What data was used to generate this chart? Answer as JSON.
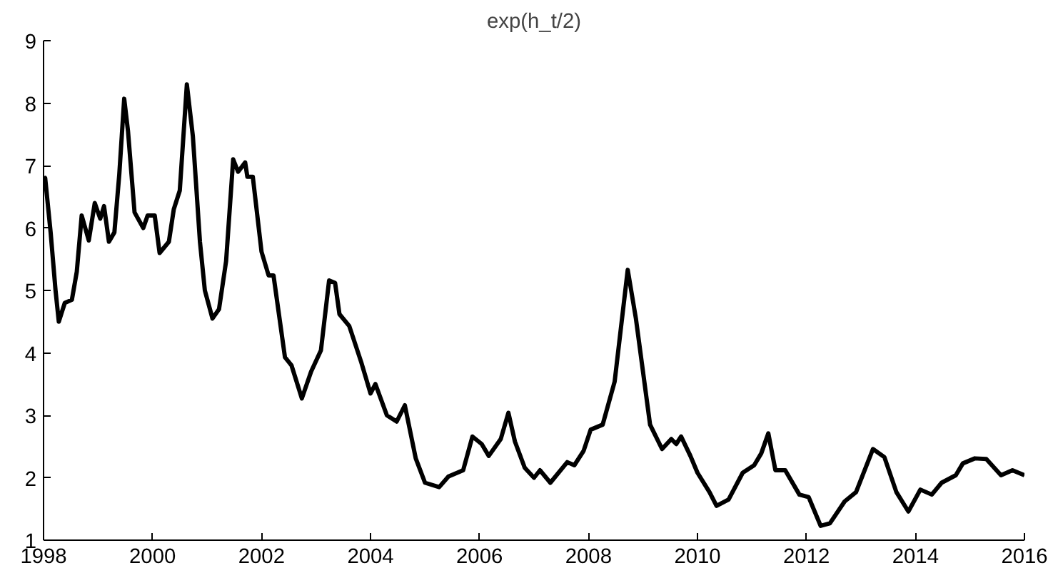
{
  "chart_data": {
    "type": "line",
    "title": "exp(h_t/2)",
    "xlim": [
      1998,
      2016
    ],
    "xticks": [
      1998,
      2000,
      2002,
      2004,
      2006,
      2008,
      2010,
      2012,
      2014,
      2016
    ],
    "ylim": [
      1,
      9
    ],
    "yticks": [
      1,
      2,
      3,
      4,
      5,
      6,
      7,
      8,
      9
    ],
    "grid": false,
    "marker": "none",
    "line_style": "solid",
    "series": [
      {
        "color": "#000000",
        "x": [
          1998.0,
          1998.03,
          1998.13,
          1998.22,
          1998.28,
          1998.39,
          1998.52,
          1998.61,
          1998.7,
          1998.83,
          1998.94,
          1999.04,
          1999.11,
          1999.2,
          1999.3,
          1999.39,
          1999.48,
          1999.55,
          1999.67,
          1999.83,
          1999.91,
          2000.04,
          2000.13,
          2000.3,
          2000.39,
          2000.5,
          2000.63,
          2000.74,
          2000.87,
          2000.96,
          2001.1,
          2001.22,
          2001.35,
          2001.48,
          2001.57,
          2001.7,
          2001.74,
          2001.84,
          2002.0,
          2002.13,
          2002.22,
          2002.43,
          2002.55,
          2002.74,
          2002.91,
          2003.09,
          2003.24,
          2003.35,
          2003.43,
          2003.61,
          2003.83,
          2004.0,
          2004.09,
          2004.3,
          2004.48,
          2004.63,
          2004.83,
          2005.0,
          2005.26,
          2005.43,
          2005.7,
          2005.87,
          2006.04,
          2006.17,
          2006.39,
          2006.53,
          2006.65,
          2006.83,
          2007.0,
          2007.11,
          2007.3,
          2007.61,
          2007.74,
          2007.91,
          2008.04,
          2008.26,
          2008.48,
          2008.72,
          2008.87,
          2009.13,
          2009.35,
          2009.52,
          2009.61,
          2009.7,
          2009.87,
          2010.0,
          2010.22,
          2010.35,
          2010.57,
          2010.83,
          2011.04,
          2011.17,
          2011.3,
          2011.43,
          2011.61,
          2011.87,
          2012.04,
          2012.26,
          2012.43,
          2012.7,
          2012.91,
          2013.22,
          2013.43,
          2013.65,
          2013.87,
          2014.09,
          2014.3,
          2014.48,
          2014.74,
          2014.87,
          2015.09,
          2015.3,
          2015.57,
          2015.78,
          2016.0
        ],
        "values": [
          6.78,
          6.8,
          5.93,
          5.0,
          4.5,
          4.8,
          4.85,
          5.3,
          6.2,
          5.8,
          6.4,
          6.15,
          6.35,
          5.78,
          5.93,
          6.86,
          8.07,
          7.55,
          6.25,
          6.0,
          6.2,
          6.2,
          5.6,
          5.78,
          6.3,
          6.6,
          8.3,
          7.47,
          5.78,
          5.0,
          4.55,
          4.7,
          5.47,
          7.1,
          6.9,
          7.05,
          6.82,
          6.82,
          5.62,
          5.24,
          5.24,
          3.93,
          3.8,
          3.27,
          3.7,
          4.04,
          5.16,
          5.12,
          4.62,
          4.43,
          3.85,
          3.35,
          3.5,
          3.0,
          2.9,
          3.16,
          2.31,
          1.92,
          1.85,
          2.02,
          2.12,
          2.66,
          2.54,
          2.35,
          2.62,
          3.04,
          2.58,
          2.16,
          2.0,
          2.12,
          1.92,
          2.25,
          2.2,
          2.43,
          2.77,
          2.85,
          3.54,
          5.33,
          4.55,
          2.85,
          2.46,
          2.62,
          2.54,
          2.66,
          2.35,
          2.08,
          1.77,
          1.55,
          1.65,
          2.08,
          2.2,
          2.39,
          2.71,
          2.12,
          2.12,
          1.73,
          1.69,
          1.23,
          1.27,
          1.62,
          1.77,
          2.46,
          2.33,
          1.77,
          1.46,
          1.81,
          1.73,
          1.92,
          2.04,
          2.23,
          2.31,
          2.3,
          2.04,
          2.12,
          2.04
        ]
      }
    ]
  }
}
